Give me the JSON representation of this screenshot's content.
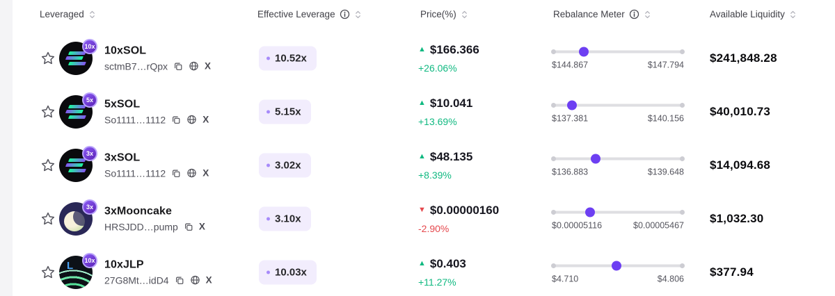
{
  "table": {
    "columns": [
      {
        "label": "Leveraged",
        "info": false
      },
      {
        "label": "Effective Leverage",
        "info": true
      },
      {
        "label": "Price(%)",
        "info": false
      },
      {
        "label": "Rebalance Meter",
        "info": true
      },
      {
        "label": "Available Liquidity",
        "info": false
      }
    ]
  },
  "rows": [
    {
      "name": "10xSOL",
      "address": "sctmB7…rQpx",
      "badge": "10x",
      "leverage": "10.52x",
      "direction": "up",
      "price": "$166.366",
      "change": "+26.06%",
      "meter": {
        "low": "$144.867",
        "high": "$147.794",
        "position": 24
      },
      "liquidity": "$241,848.28"
    },
    {
      "name": "5xSOL",
      "address": "So1111…1112",
      "badge": "5x",
      "leverage": "5.15x",
      "direction": "up",
      "price": "$10.041",
      "change": "+13.69%",
      "meter": {
        "low": "$137.381",
        "high": "$140.156",
        "position": 15
      },
      "liquidity": "$40,010.73"
    },
    {
      "name": "3xSOL",
      "address": "So1111…1112",
      "badge": "3x",
      "leverage": "3.02x",
      "direction": "up",
      "price": "$48.135",
      "change": "+8.39%",
      "meter": {
        "low": "$136.883",
        "high": "$139.648",
        "position": 33
      },
      "liquidity": "$14,094.68"
    },
    {
      "name": "3xMooncake",
      "address": "HRSJDD…pump",
      "badge": "3x",
      "leverage": "3.10x",
      "direction": "down",
      "price": "$0.00000160",
      "change": "-2.90%",
      "meter": {
        "low": "$0.00005116",
        "high": "$0.00005467",
        "position": 29
      },
      "liquidity": "$1,032.30"
    },
    {
      "name": "10xJLP",
      "address": "27G8Mt…idD4",
      "badge": "10x",
      "leverage": "10.03x",
      "direction": "up",
      "price": "$0.403",
      "change": "+11.27%",
      "meter": {
        "low": "$4.710",
        "high": "$4.806",
        "position": 49
      },
      "liquidity": "$377.94"
    }
  ],
  "colors": {
    "accent_purple": "#6d3ff2",
    "pill_background": "#f2edfd",
    "up_green": "#10b981",
    "down_red": "#e5484d"
  }
}
